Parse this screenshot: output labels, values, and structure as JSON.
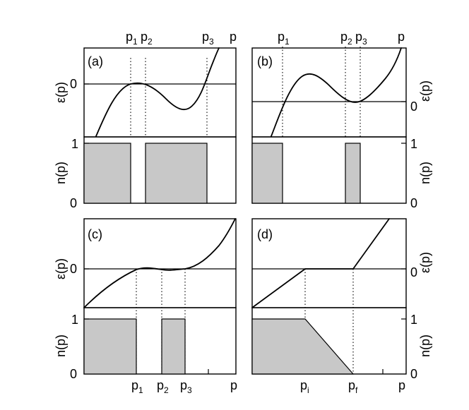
{
  "panels": {
    "a": {
      "tag": "(a)",
      "p_labels": [
        {
          "base": "p",
          "sub": "1"
        },
        {
          "base": "p",
          "sub": "2"
        },
        {
          "base": "p",
          "sub": "3"
        }
      ],
      "axis_p": "p"
    },
    "b": {
      "tag": "(b)",
      "p_labels": [
        {
          "base": "p",
          "sub": "1"
        },
        {
          "base": "p",
          "sub": "2"
        },
        {
          "base": "p",
          "sub": "3"
        }
      ],
      "axis_p": "p"
    },
    "c": {
      "tag": "(c)",
      "p_labels": [
        {
          "base": "p",
          "sub": "1"
        },
        {
          "base": "p",
          "sub": "2"
        },
        {
          "base": "p",
          "sub": "3"
        }
      ],
      "axis_p": "p"
    },
    "d": {
      "tag": "(d)",
      "p_labels": [
        {
          "base": "p",
          "sub": "i"
        },
        {
          "base": "p",
          "sub": "f"
        }
      ],
      "axis_p": "p"
    }
  },
  "axes": {
    "eps_label": "ε(p)",
    "n_label": "n(p)",
    "zero": "0",
    "one": "1"
  }
}
